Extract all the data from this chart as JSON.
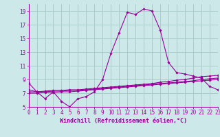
{
  "hours": [
    0,
    1,
    2,
    3,
    4,
    5,
    6,
    7,
    8,
    9,
    10,
    11,
    12,
    13,
    14,
    15,
    16,
    17,
    18,
    19,
    20,
    21,
    22,
    23
  ],
  "line1": [
    8.5,
    7.2,
    6.2,
    7.2,
    5.8,
    5.0,
    6.2,
    6.5,
    7.2,
    9.0,
    12.8,
    15.8,
    18.8,
    18.5,
    19.3,
    19.0,
    16.2,
    11.5,
    10.0,
    9.8,
    9.5,
    9.2,
    8.0,
    7.5
  ],
  "line2": [
    7.5,
    7.2,
    7.3,
    7.4,
    7.4,
    7.5,
    7.5,
    7.6,
    7.7,
    7.8,
    7.9,
    8.0,
    8.1,
    8.2,
    8.3,
    8.4,
    8.6,
    8.7,
    8.9,
    9.0,
    9.2,
    9.4,
    9.5,
    9.6
  ],
  "line3": [
    7.2,
    7.2,
    7.2,
    7.3,
    7.3,
    7.4,
    7.4,
    7.5,
    7.6,
    7.7,
    7.8,
    7.9,
    8.0,
    8.1,
    8.2,
    8.3,
    8.4,
    8.5,
    8.6,
    8.7,
    8.8,
    9.0,
    9.1,
    9.2
  ],
  "line4": [
    7.0,
    7.0,
    7.1,
    7.1,
    7.2,
    7.2,
    7.3,
    7.4,
    7.5,
    7.6,
    7.7,
    7.8,
    7.9,
    8.0,
    8.1,
    8.2,
    8.3,
    8.4,
    8.5,
    8.6,
    8.7,
    8.8,
    8.9,
    9.0
  ],
  "line_color": "#990099",
  "bg_color": "#cce8e8",
  "grid_color": "#aacccc",
  "xlabel": "Windchill (Refroidissement éolien,°C)",
  "xlim_min": 0,
  "xlim_max": 23,
  "ylim_min": 5,
  "ylim_max": 20,
  "yticks": [
    5,
    7,
    9,
    11,
    13,
    15,
    17,
    19
  ],
  "xticks": [
    0,
    1,
    2,
    3,
    4,
    5,
    6,
    7,
    8,
    9,
    10,
    11,
    12,
    13,
    14,
    15,
    16,
    17,
    18,
    19,
    20,
    21,
    22,
    23
  ],
  "tick_fontsize": 5.5,
  "xlabel_fontsize": 6.0
}
